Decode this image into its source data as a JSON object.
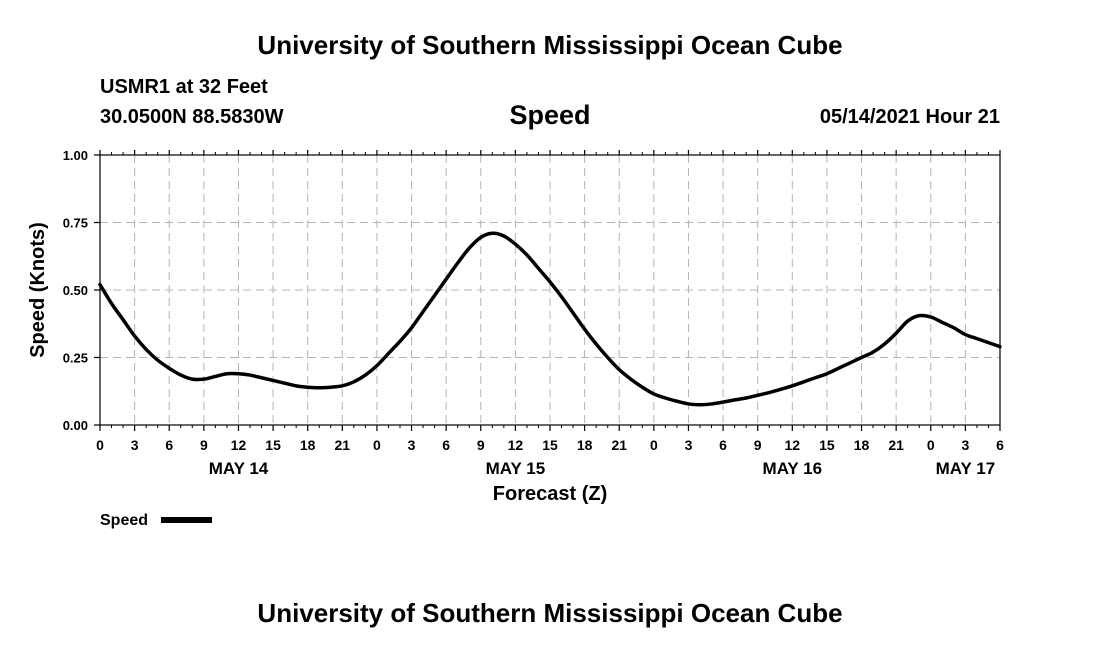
{
  "header": {
    "title": "University of Southern Mississippi Ocean Cube",
    "station": "USMR1 at 32 Feet",
    "coordinates": "30.0500N  88.5830W",
    "chart_title": "Speed",
    "datetime": "05/14/2021 Hour 21"
  },
  "footer": {
    "title": "University of Southern Mississippi Ocean Cube"
  },
  "chart_data": {
    "type": "line",
    "title": "Speed",
    "xlabel": "Forecast (Z)",
    "ylabel": "Speed (Knots)",
    "ylim": [
      0,
      1
    ],
    "xlim": [
      0,
      78
    ],
    "y_ticks": [
      "0.00",
      "0.25",
      "0.50",
      "0.75",
      "1.00"
    ],
    "y_tick_values": [
      0,
      0.25,
      0.5,
      0.75,
      1.0
    ],
    "x_ticks": [
      "0",
      "3",
      "6",
      "9",
      "12",
      "15",
      "18",
      "21",
      "0",
      "3",
      "6",
      "9",
      "12",
      "15",
      "18",
      "21",
      "0",
      "3",
      "6",
      "9",
      "12",
      "15",
      "18",
      "21",
      "0",
      "3",
      "6"
    ],
    "date_labels": [
      {
        "label": "MAY 14",
        "hour": 12
      },
      {
        "label": "MAY 15",
        "hour": 36
      },
      {
        "label": "MAY 16",
        "hour": 60
      },
      {
        "label": "MAY 17",
        "hour": 75
      }
    ],
    "grid": true,
    "legend": "bottom-left",
    "series": [
      {
        "name": "Speed",
        "color": "#000000",
        "x": [
          0,
          1,
          2,
          3,
          4,
          5,
          6,
          7,
          8,
          9,
          10,
          11,
          12,
          13,
          14,
          15,
          16,
          17,
          18,
          19,
          20,
          21,
          22,
          23,
          24,
          25,
          26,
          27,
          28,
          29,
          30,
          31,
          32,
          33,
          34,
          35,
          36,
          37,
          38,
          39,
          40,
          41,
          42,
          43,
          44,
          45,
          46,
          47,
          48,
          49,
          50,
          51,
          52,
          53,
          54,
          55,
          56,
          57,
          58,
          59,
          60,
          61,
          62,
          63,
          64,
          65,
          66,
          67,
          68,
          69,
          70,
          71,
          72,
          73,
          74,
          75,
          76,
          77,
          78
        ],
        "values": [
          0.52,
          0.45,
          0.39,
          0.33,
          0.28,
          0.24,
          0.21,
          0.185,
          0.17,
          0.17,
          0.18,
          0.19,
          0.19,
          0.185,
          0.175,
          0.165,
          0.155,
          0.145,
          0.14,
          0.138,
          0.14,
          0.145,
          0.16,
          0.185,
          0.22,
          0.265,
          0.31,
          0.36,
          0.42,
          0.48,
          0.54,
          0.6,
          0.655,
          0.695,
          0.71,
          0.7,
          0.67,
          0.63,
          0.58,
          0.53,
          0.475,
          0.415,
          0.355,
          0.3,
          0.25,
          0.205,
          0.17,
          0.14,
          0.115,
          0.1,
          0.088,
          0.078,
          0.075,
          0.078,
          0.085,
          0.093,
          0.1,
          0.11,
          0.12,
          0.132,
          0.145,
          0.16,
          0.175,
          0.19,
          0.21,
          0.23,
          0.25,
          0.27,
          0.3,
          0.34,
          0.385,
          0.405,
          0.4,
          0.38,
          0.36,
          0.335,
          0.32,
          0.305,
          0.29
        ]
      }
    ]
  }
}
